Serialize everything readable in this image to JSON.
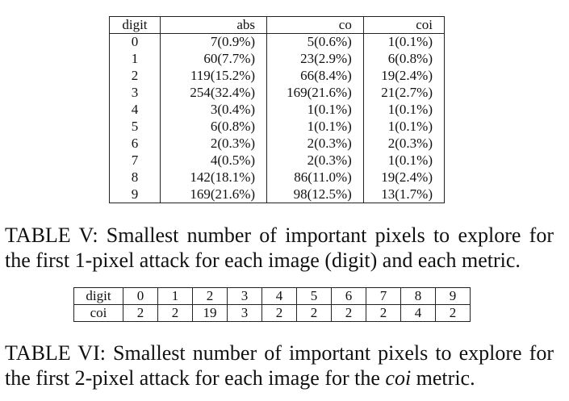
{
  "table5": {
    "headers": [
      "digit",
      "abs",
      "co",
      "coi"
    ],
    "rows": [
      [
        "0",
        "7(0.9%)",
        "5(0.6%)",
        "1(0.1%)"
      ],
      [
        "1",
        "60(7.7%)",
        "23(2.9%)",
        "6(0.8%)"
      ],
      [
        "2",
        "119(15.2%)",
        "66(8.4%)",
        "19(2.4%)"
      ],
      [
        "3",
        "254(32.4%)",
        "169(21.6%)",
        "21(2.7%)"
      ],
      [
        "4",
        "3(0.4%)",
        "1(0.1%)",
        "1(0.1%)"
      ],
      [
        "5",
        "6(0.8%)",
        "1(0.1%)",
        "1(0.1%)"
      ],
      [
        "6",
        "2(0.3%)",
        "2(0.3%)",
        "2(0.3%)"
      ],
      [
        "7",
        "4(0.5%)",
        "2(0.3%)",
        "1(0.1%)"
      ],
      [
        "8",
        "142(18.1%)",
        "86(11.0%)",
        "19(2.4%)"
      ],
      [
        "9",
        "169(21.6%)",
        "98(12.5%)",
        "13(1.7%)"
      ]
    ],
    "caption": "TABLE V: Smallest number of important pixels to explore for the first 1-pixel attack for each image (digit) and each metric."
  },
  "table6": {
    "row_labels": [
      "digit",
      "coi"
    ],
    "digits": [
      "0",
      "1",
      "2",
      "3",
      "4",
      "5",
      "6",
      "7",
      "8",
      "9"
    ],
    "coi": [
      "2",
      "2",
      "19",
      "3",
      "2",
      "2",
      "2",
      "2",
      "4",
      "2"
    ],
    "caption_prefix": "TABLE VI: Smallest number of important pixels to explore for the first 2-pixel attack for each image for the ",
    "caption_metric": "coi",
    "caption_suffix": " metric."
  }
}
